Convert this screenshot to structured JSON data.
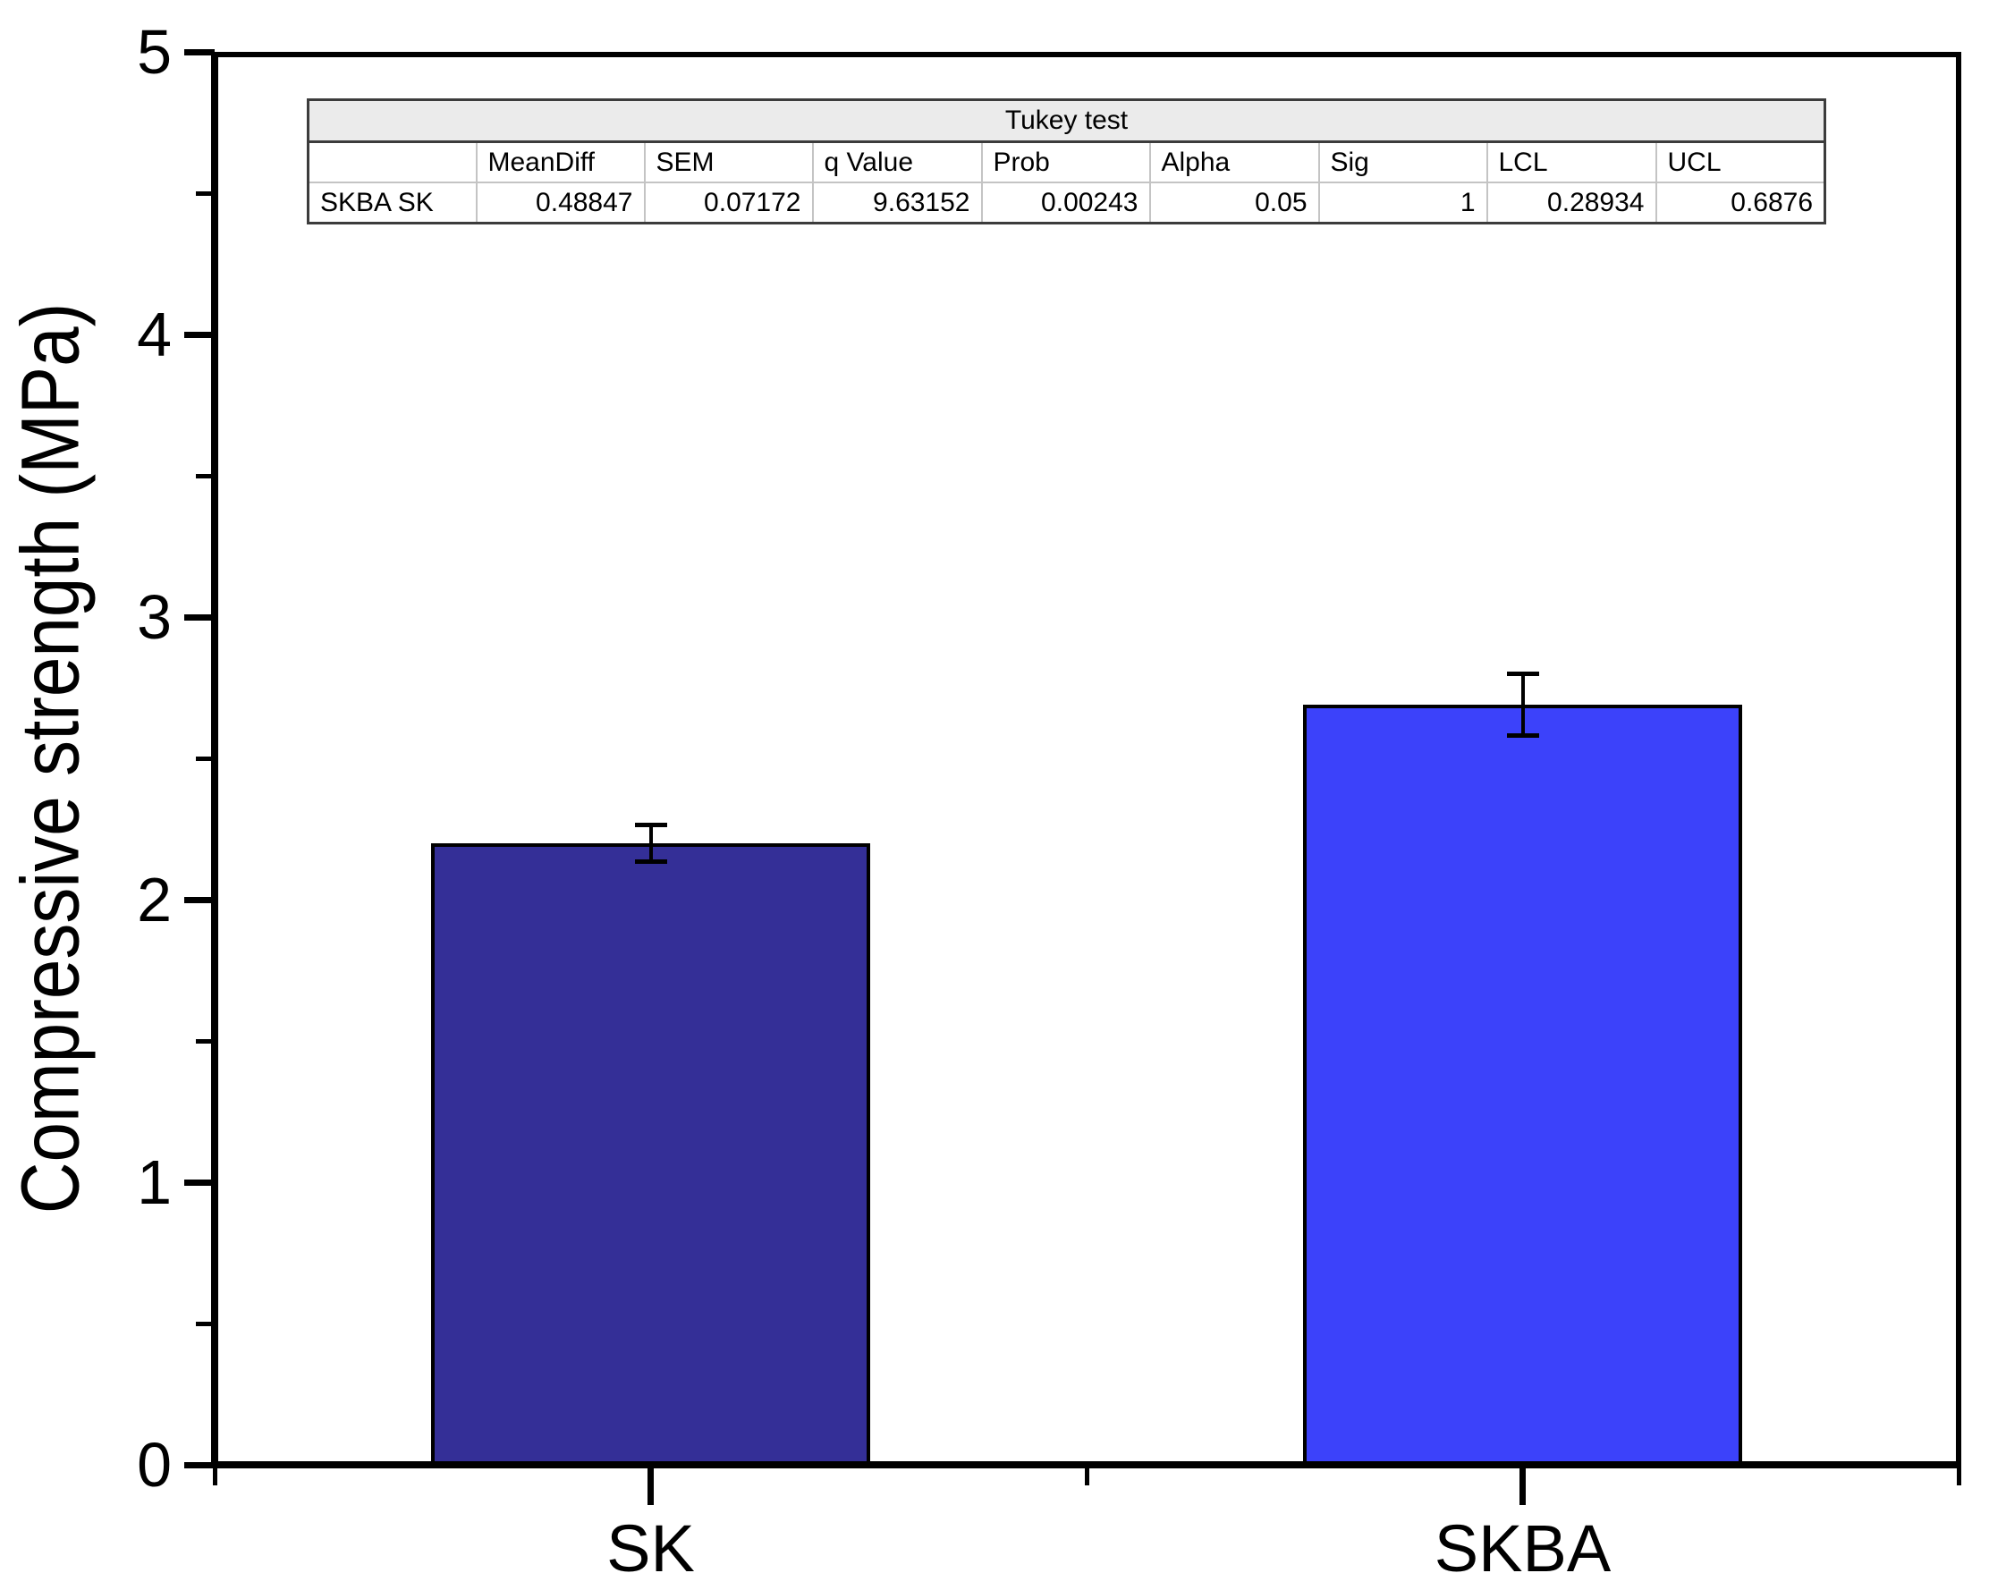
{
  "chart_data": {
    "type": "bar",
    "categories": [
      "SK",
      "SKBA"
    ],
    "values": [
      2.2,
      2.69
    ],
    "errors": [
      0.065,
      0.11
    ],
    "bar_colors": [
      "#342F97",
      "#3C42FA"
    ],
    "title": "",
    "xlabel": "",
    "ylabel": "Compressive strength (MPa)",
    "ylim": [
      0,
      5
    ],
    "yticks": [
      0,
      1,
      2,
      3,
      4,
      5
    ],
    "minor_ytick_step": 0.5,
    "grid": false,
    "legend": "none",
    "frame": "full-box",
    "axis_color": "#000000"
  },
  "tukey_table": {
    "title": "Tukey test",
    "columns": [
      "",
      "MeanDiff",
      "SEM",
      "q Value",
      "Prob",
      "Alpha",
      "Sig",
      "LCL",
      "UCL"
    ],
    "rows": [
      {
        "label": "SKBA SK",
        "values": [
          "0.48847",
          "0.07172",
          "9.63152",
          "0.00243",
          "0.05",
          "1",
          "0.28934",
          "0.6876"
        ]
      }
    ]
  }
}
